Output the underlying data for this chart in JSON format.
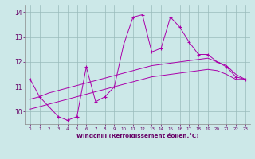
{
  "x": [
    0,
    1,
    2,
    3,
    4,
    5,
    6,
    7,
    8,
    9,
    10,
    11,
    12,
    13,
    14,
    15,
    16,
    17,
    18,
    19,
    20,
    21,
    22,
    23
  ],
  "line_main": [
    11.3,
    10.6,
    10.2,
    9.8,
    9.65,
    9.8,
    11.8,
    10.4,
    10.6,
    11.0,
    12.7,
    13.8,
    13.9,
    12.4,
    12.55,
    13.8,
    13.4,
    12.8,
    12.3,
    12.3,
    12.0,
    11.8,
    11.4,
    11.3
  ],
  "line_upper": [
    10.5,
    10.6,
    10.75,
    10.85,
    10.95,
    11.05,
    11.15,
    11.25,
    11.35,
    11.45,
    11.55,
    11.65,
    11.75,
    11.85,
    11.9,
    11.95,
    12.0,
    12.05,
    12.1,
    12.15,
    12.0,
    11.85,
    11.5,
    11.3
  ],
  "line_lower": [
    10.1,
    10.2,
    10.3,
    10.4,
    10.5,
    10.6,
    10.7,
    10.8,
    10.9,
    11.0,
    11.1,
    11.2,
    11.3,
    11.4,
    11.45,
    11.5,
    11.55,
    11.6,
    11.65,
    11.7,
    11.65,
    11.5,
    11.3,
    11.3
  ],
  "xlabel": "Windchill (Refroidissement éolien,°C)",
  "xlim": [
    -0.5,
    23.5
  ],
  "ylim": [
    9.5,
    14.3
  ],
  "yticks": [
    10,
    11,
    12,
    13,
    14
  ],
  "xticks": [
    0,
    1,
    2,
    3,
    4,
    5,
    6,
    7,
    8,
    9,
    10,
    11,
    12,
    13,
    14,
    15,
    16,
    17,
    18,
    19,
    20,
    21,
    22,
    23
  ],
  "line_color": "#aa00aa",
  "bg_color": "#cce8e8",
  "grid_color": "#99bbbb"
}
